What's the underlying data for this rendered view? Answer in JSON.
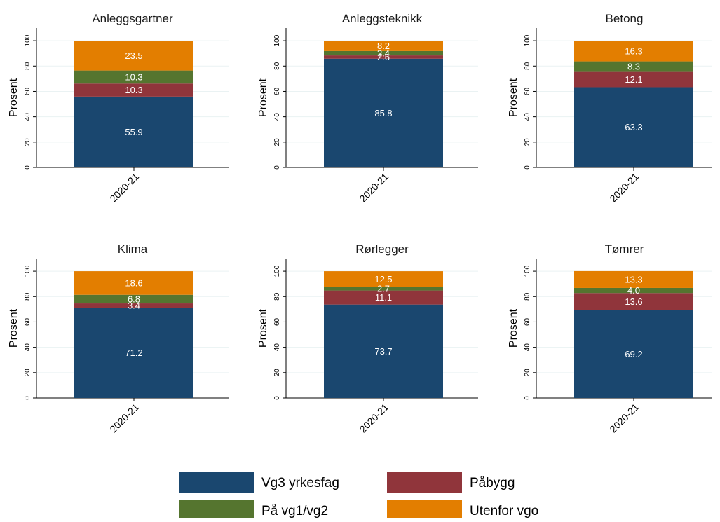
{
  "chart_data": {
    "type": "bar",
    "stacked": true,
    "grid": true,
    "legend_position": "bottom",
    "ylabel": "Prosent",
    "ylim": [
      0,
      110
    ],
    "yticks": [
      "0",
      "20",
      "40",
      "60",
      "80",
      "100"
    ],
    "category": "2020-21",
    "series_names": [
      "Vg3 yrkesfag",
      "Påbygg",
      "På vg1/vg2",
      "Utenfor vgo"
    ],
    "colors": [
      "#1a476f",
      "#90353b",
      "#55752f",
      "#e37e00"
    ],
    "panels": [
      {
        "title": "Anleggsgartner",
        "values": [
          55.9,
          10.3,
          10.3,
          23.5
        ],
        "labels": [
          "55.9",
          "10.3",
          "10.3",
          "23.5"
        ]
      },
      {
        "title": "Anleggsteknikk",
        "values": [
          85.8,
          2.6,
          3.4,
          8.2
        ],
        "labels": [
          "85.8",
          "2.6",
          "3.4",
          "8.2"
        ]
      },
      {
        "title": "Betong",
        "values": [
          63.3,
          12.1,
          8.3,
          16.3
        ],
        "labels": [
          "63.3",
          "12.1",
          "8.3",
          "16.3"
        ]
      },
      {
        "title": "Klima",
        "values": [
          71.2,
          3.4,
          6.8,
          18.6
        ],
        "labels": [
          "71.2",
          "3.4",
          "6.8",
          "18.6"
        ]
      },
      {
        "title": "Rørlegger",
        "values": [
          73.7,
          11.1,
          2.7,
          12.5
        ],
        "labels": [
          "73.7",
          "11.1",
          "2.7",
          "12.5"
        ]
      },
      {
        "title": "Tømrer",
        "values": [
          69.2,
          13.6,
          4.0,
          13.3
        ],
        "labels": [
          "69.2",
          "13.6",
          "4.0",
          "13.3"
        ]
      }
    ]
  }
}
